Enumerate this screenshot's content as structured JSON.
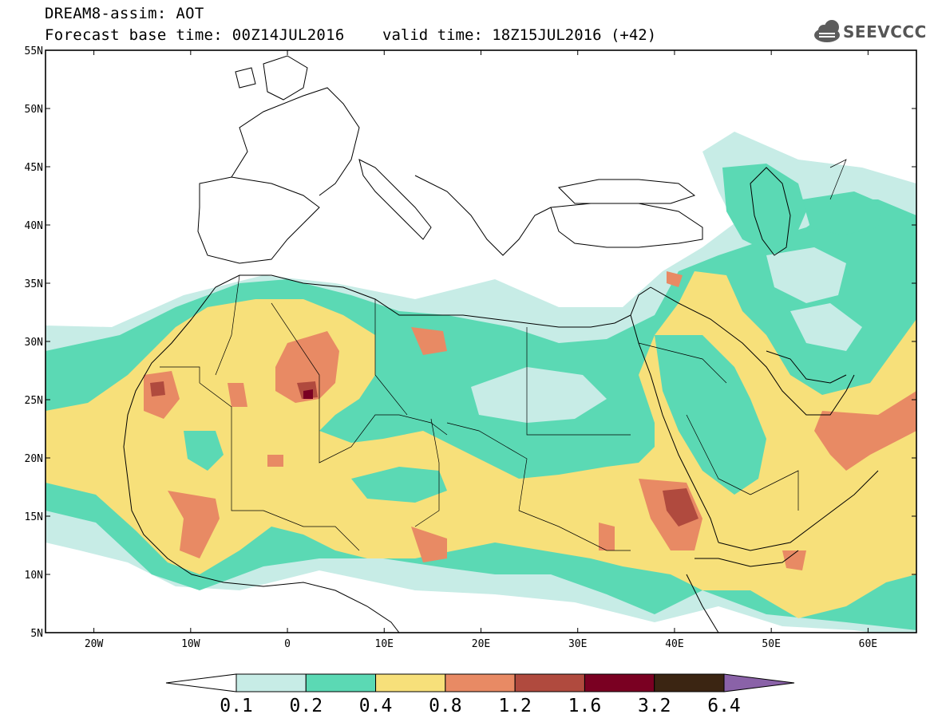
{
  "header": {
    "line1": "DREAM8-assim: AOT",
    "line2": "Forecast base time: 00Z14JUL2016",
    "valid": "valid time: 18Z15JUL2016 (+42)"
  },
  "logo": {
    "text": "SEEVCCC",
    "icon": "cloud-icon"
  },
  "map": {
    "lat_labels": [
      "55N",
      "50N",
      "45N",
      "40N",
      "35N",
      "30N",
      "25N",
      "20N",
      "15N",
      "10N",
      "5N"
    ],
    "lon_labels": [
      "20W",
      "10W",
      "0",
      "10E",
      "20E",
      "30E",
      "40E",
      "50E",
      "60E"
    ],
    "extent": {
      "lon": [
        -25,
        65
      ],
      "lat": [
        5,
        55
      ]
    }
  },
  "colorbar": {
    "labels": [
      "0.1",
      "0.2",
      "0.4",
      "0.8",
      "1.2",
      "1.6",
      "3.2",
      "6.4"
    ],
    "colors": [
      "#ffffff",
      "#c7ece6",
      "#5bd9b4",
      "#f7e07a",
      "#e88a64",
      "#b04a3e",
      "#7a0022",
      "#3b2512",
      "#8a62a8"
    ]
  }
}
